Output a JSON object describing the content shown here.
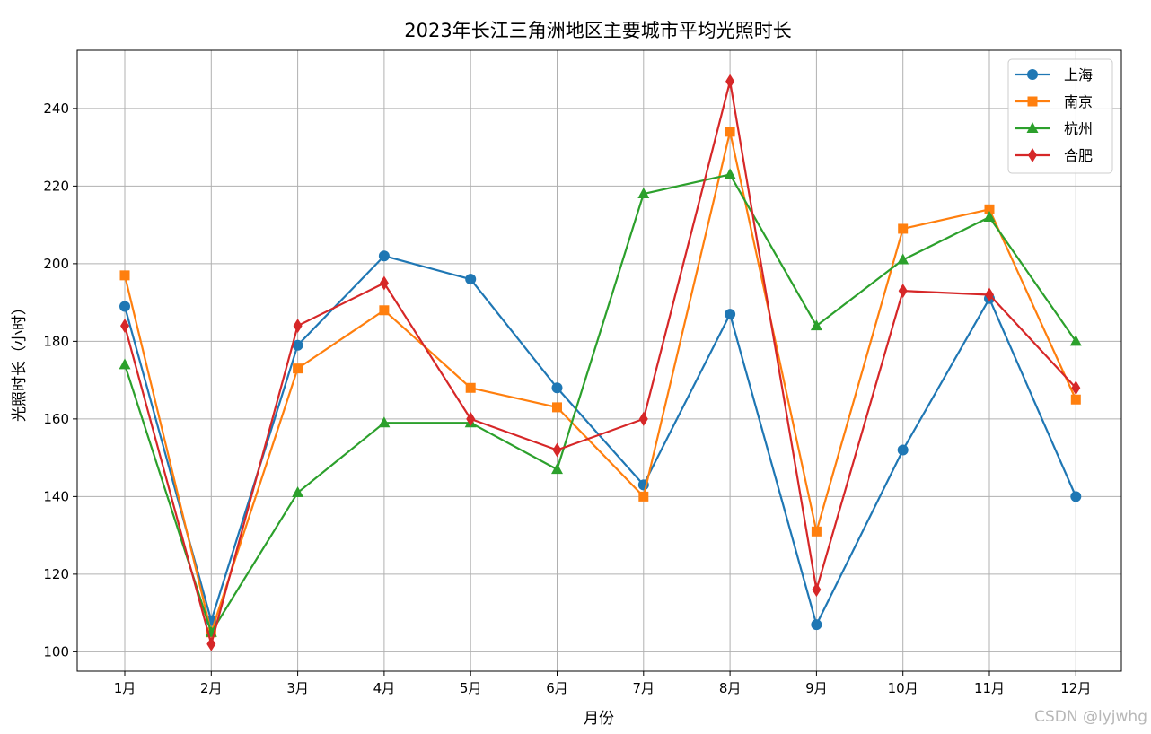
{
  "chart_data": {
    "type": "line",
    "title": "2023年长江三角洲地区主要城市平均光照时长",
    "xlabel": "月份",
    "ylabel": "光照时长（小时）",
    "categories": [
      "1月",
      "2月",
      "3月",
      "4月",
      "5月",
      "6月",
      "7月",
      "8月",
      "9月",
      "10月",
      "11月",
      "12月"
    ],
    "ylim": [
      95,
      255
    ],
    "yticks": [
      100,
      120,
      140,
      160,
      180,
      200,
      220,
      240
    ],
    "grid": true,
    "legend_position": "top-right",
    "series": [
      {
        "name": "上海",
        "color": "#1f77b4",
        "marker": "circle",
        "values": [
          189,
          108,
          179,
          202,
          196,
          168,
          143,
          187,
          107,
          152,
          191,
          140
        ]
      },
      {
        "name": "南京",
        "color": "#ff7f0e",
        "marker": "square",
        "values": [
          197,
          105,
          173,
          188,
          168,
          163,
          140,
          234,
          131,
          209,
          214,
          165
        ]
      },
      {
        "name": "杭州",
        "color": "#2ca02c",
        "marker": "triangle",
        "values": [
          174,
          105,
          141,
          159,
          159,
          147,
          218,
          223,
          184,
          201,
          212,
          180
        ]
      },
      {
        "name": "合肥",
        "color": "#d62728",
        "marker": "diamond",
        "values": [
          184,
          102,
          184,
          195,
          160,
          152,
          160,
          247,
          116,
          193,
          192,
          168
        ]
      }
    ]
  },
  "watermark": "CSDN @lyjwhg"
}
